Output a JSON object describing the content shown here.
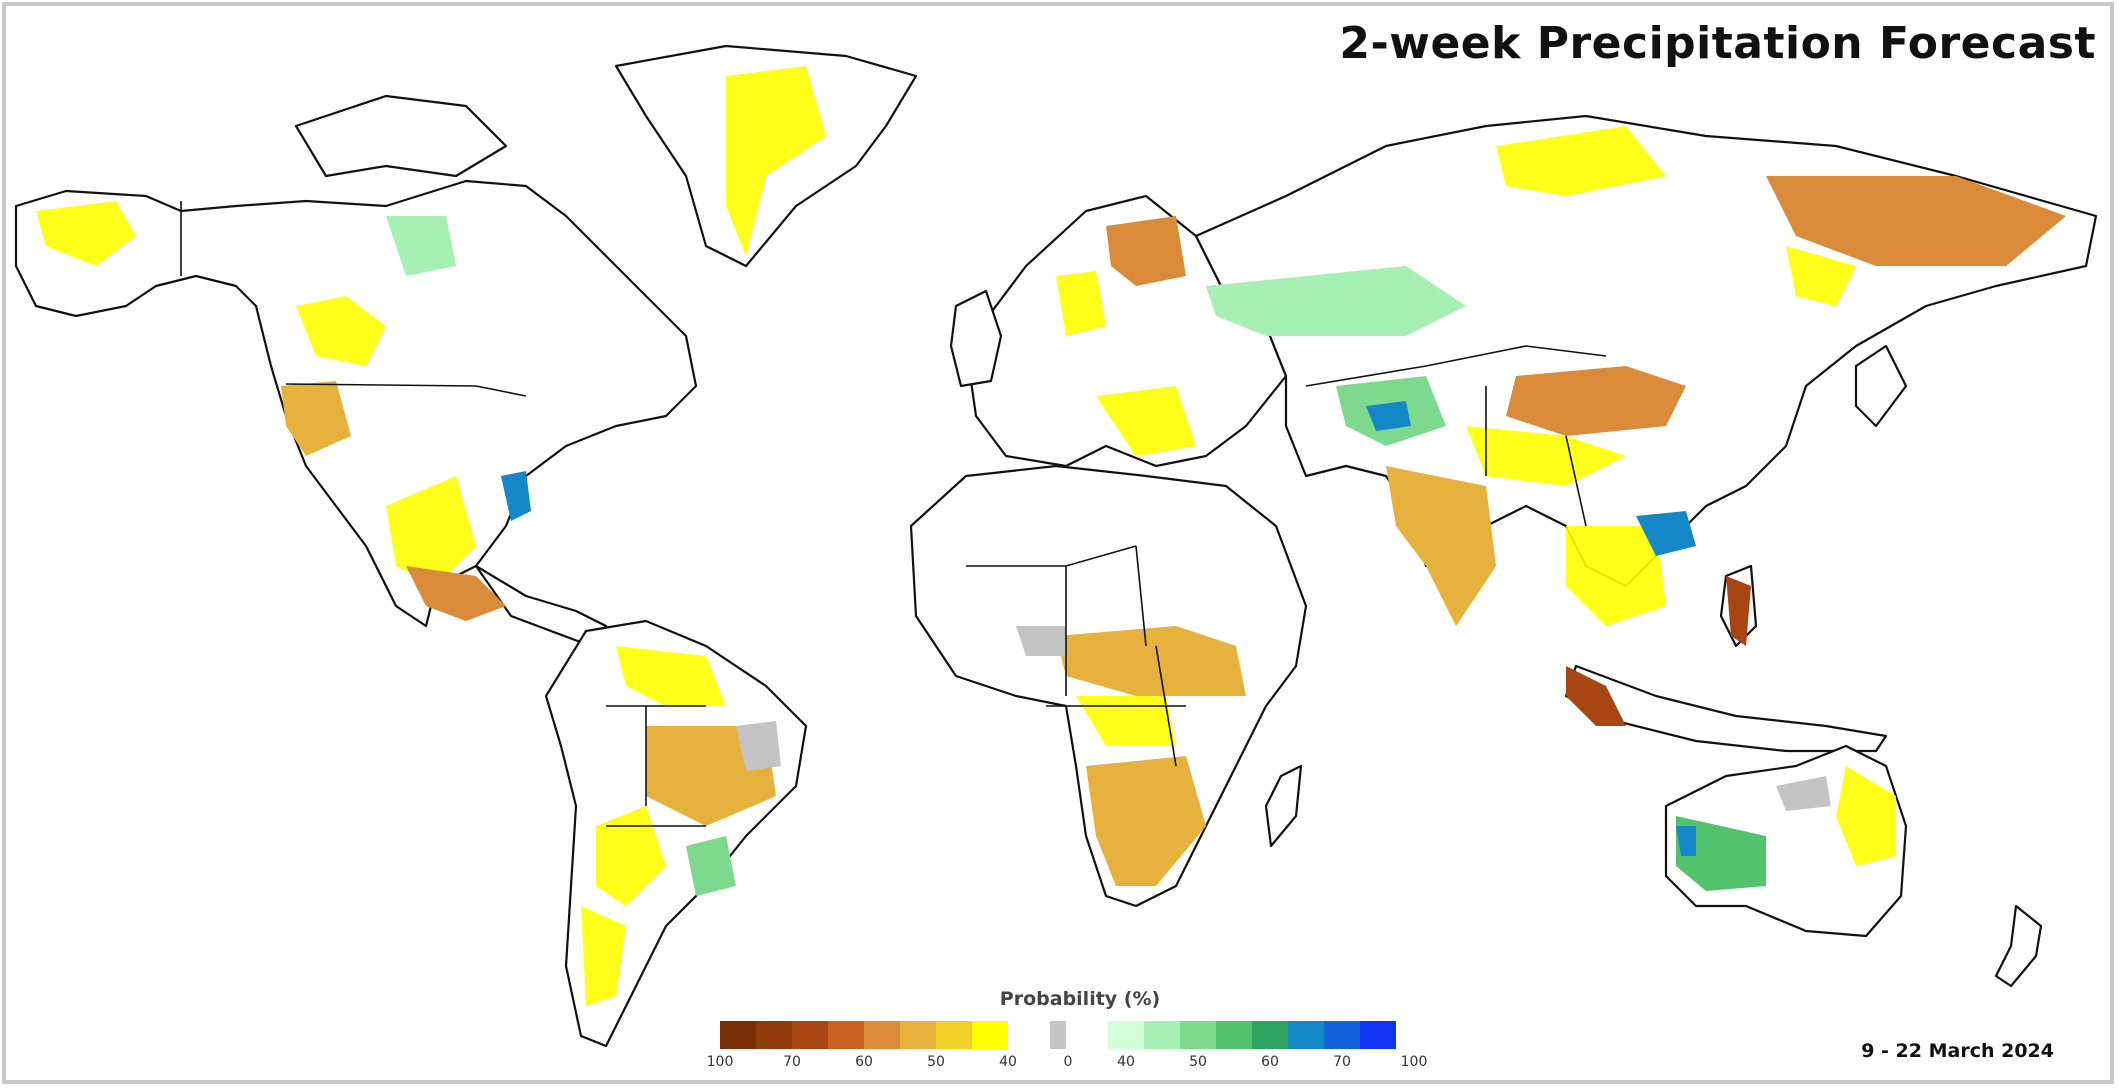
{
  "title": "2-week Precipitation Forecast",
  "date_range": "9 - 22 March 2024",
  "legend": {
    "title": "Probability (%)",
    "dry_colors": [
      "#7a2e06",
      "#8e3a0a",
      "#a74612",
      "#c8611f",
      "#d98b3a",
      "#e7b13d",
      "#f4d12a",
      "#ffff00"
    ],
    "neutral_color": "#c4c4c4",
    "wet_colors": [
      "#d2ffd8",
      "#a7f0b4",
      "#7dd98e",
      "#53c26c",
      "#2ea35f",
      "#1488c6",
      "#1062d8",
      "#1234f2"
    ],
    "dry_ticks": [
      "100",
      "70",
      "60",
      "50",
      "40"
    ],
    "neutral_tick": "0",
    "wet_ticks": [
      "40",
      "50",
      "60",
      "70",
      "100"
    ]
  }
}
